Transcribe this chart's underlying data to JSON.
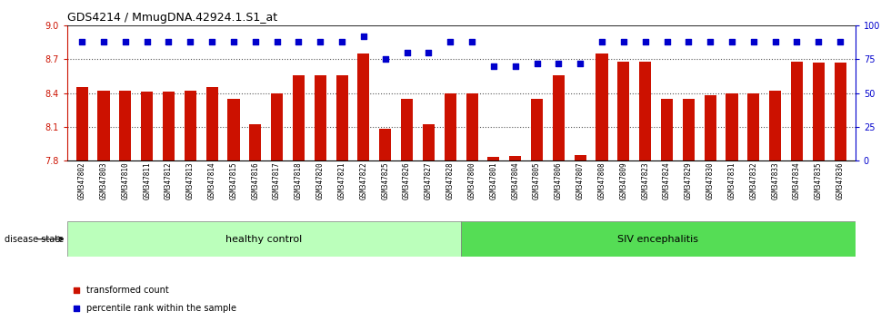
{
  "title": "GDS4214 / MmugDNA.42924.1.S1_at",
  "samples": [
    "GSM347802",
    "GSM347803",
    "GSM347810",
    "GSM347811",
    "GSM347812",
    "GSM347813",
    "GSM347814",
    "GSM347815",
    "GSM347816",
    "GSM347817",
    "GSM347818",
    "GSM347820",
    "GSM347821",
    "GSM347822",
    "GSM347825",
    "GSM347826",
    "GSM347827",
    "GSM347828",
    "GSM347800",
    "GSM347801",
    "GSM347804",
    "GSM347805",
    "GSM347806",
    "GSM347807",
    "GSM347808",
    "GSM347809",
    "GSM347823",
    "GSM347824",
    "GSM347829",
    "GSM347830",
    "GSM347831",
    "GSM347832",
    "GSM347833",
    "GSM347834",
    "GSM347835",
    "GSM347836"
  ],
  "bar_values": [
    8.45,
    8.42,
    8.42,
    8.41,
    8.41,
    8.42,
    8.45,
    8.35,
    8.12,
    8.4,
    8.56,
    8.56,
    8.56,
    8.75,
    8.08,
    8.35,
    8.12,
    8.4,
    8.4,
    7.83,
    7.84,
    8.35,
    8.56,
    7.85,
    8.75,
    8.68,
    8.68,
    8.35,
    8.35,
    8.38,
    8.4,
    8.4,
    8.42,
    8.68,
    8.67,
    8.67
  ],
  "percentile_values": [
    88,
    88,
    88,
    88,
    88,
    88,
    88,
    88,
    88,
    88,
    88,
    88,
    88,
    92,
    75,
    80,
    80,
    88,
    88,
    70,
    70,
    72,
    72,
    72,
    88,
    88,
    88,
    88,
    88,
    88,
    88,
    88,
    88,
    88,
    88,
    88
  ],
  "healthy_control_count": 18,
  "ymin": 7.8,
  "ymax": 9.0,
  "ylim_right": [
    0,
    100
  ],
  "yticks_left": [
    7.8,
    8.1,
    8.4,
    8.7,
    9.0
  ],
  "yticks_right": [
    0,
    25,
    50,
    75,
    100
  ],
  "bar_color": "#CC1100",
  "dot_color": "#0000CC",
  "healthy_color": "#BBFFBB",
  "siv_color": "#55DD55",
  "dotted_line_color": "#555555"
}
